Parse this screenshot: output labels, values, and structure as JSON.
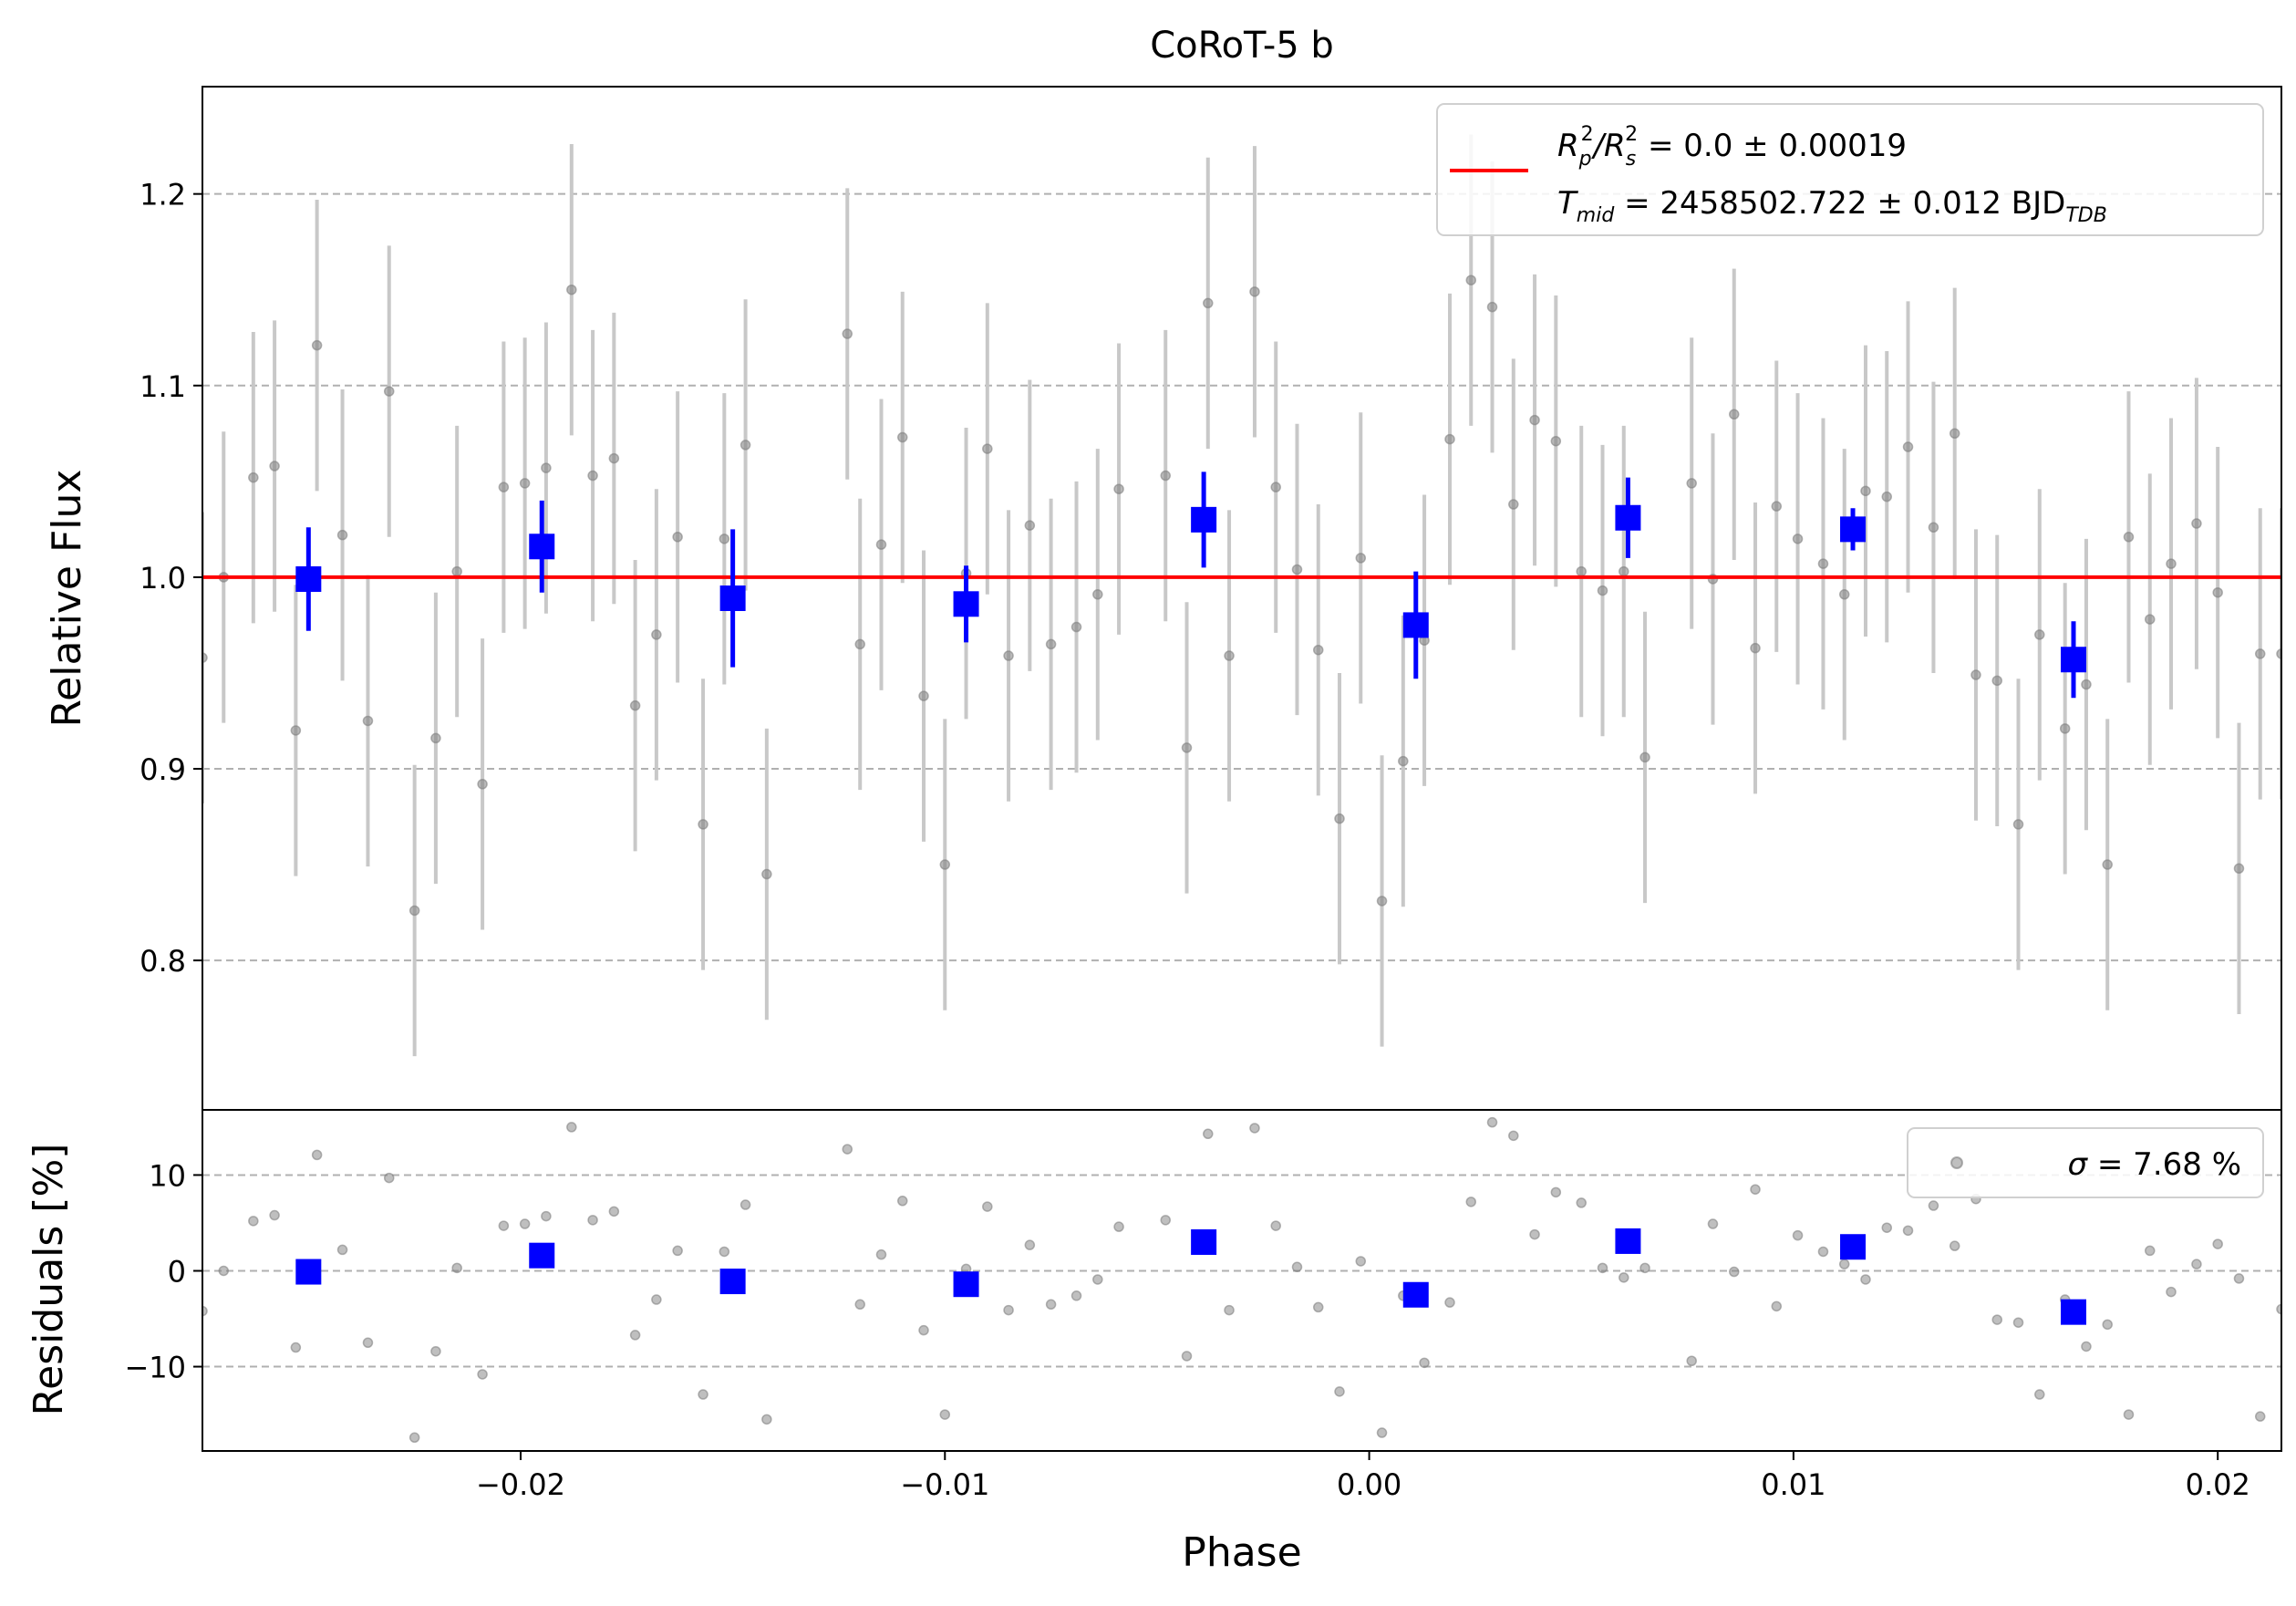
{
  "chart_data": [
    {
      "type": "scatter",
      "panel": "light-curve",
      "title": "CoRoT-5 b",
      "ylabel": "Relative Flux",
      "xlim": [
        -0.0275,
        0.0215
      ],
      "ylim": [
        0.722,
        1.256
      ],
      "yticks": [
        "0.8",
        "0.9",
        "1.0",
        "1.1",
        "1.2"
      ],
      "ytick_values": [
        0.8,
        0.9,
        1.0,
        1.1,
        1.2
      ],
      "grid": "horizontal dashed",
      "legend": {
        "placement": "top-right",
        "entries": [
          {
            "label": "R_p^2/R_s^2 = 0.0 ± 0.00019",
            "pre": "R",
            "sub1": "p",
            "sup1": "2",
            "slash": "/R",
            "sub2": "s",
            "sup2": "2",
            "post": " = 0.0 ± 0.00019"
          },
          {
            "label": "T_mid = 2458502.722 ± 0.012 BJD_TDB",
            "pre": "T",
            "sub1": "mid",
            "post": " = 2458502.722 ± 0.012 BJD",
            "sub2": "TDB"
          }
        ]
      },
      "model": {
        "y": 1.0,
        "color": "#ff0000"
      },
      "raw_points": {
        "color": "#808080",
        "errorbar_color": "#c8c8c8",
        "x": [
          -0.0275,
          -0.027,
          -0.0263,
          -0.0258,
          -0.0253,
          -0.0248,
          -0.0242,
          -0.0236,
          -0.0231,
          -0.0225,
          -0.022,
          -0.0215,
          -0.0209,
          -0.0204,
          -0.0199,
          -0.0194,
          -0.0188,
          -0.0183,
          -0.0178,
          -0.0173,
          -0.0168,
          -0.0163,
          -0.0157,
          -0.0152,
          -0.0147,
          -0.0142,
          -0.0123,
          -0.012,
          -0.0115,
          -0.011,
          -0.0105,
          -0.01,
          -0.0095,
          -0.009,
          -0.0085,
          -0.008,
          -0.0075,
          -0.0069,
          -0.0064,
          -0.0059,
          -0.0048,
          -0.0043,
          -0.0038,
          -0.0033,
          -0.0027,
          -0.0022,
          -0.0017,
          -0.0012,
          -0.0007,
          -0.0002,
          0.0003,
          0.0008,
          0.0013,
          0.0019,
          0.0024,
          0.0029,
          0.0034,
          0.0039,
          0.0044,
          0.005,
          0.0055,
          0.006,
          0.0065,
          0.0076,
          0.0081,
          0.0086,
          0.0091,
          0.0096,
          0.0101,
          0.0107,
          0.0112,
          0.0117,
          0.0122,
          0.0127,
          0.0133,
          0.0138,
          0.0143,
          0.0148,
          0.0153,
          0.0158,
          0.0164,
          0.0169,
          0.0174,
          0.0179,
          0.0184,
          0.0189,
          0.0195,
          0.02,
          0.0205,
          0.021,
          0.0215
        ],
        "y": [
          0.958,
          1.0,
          1.052,
          1.058,
          0.92,
          1.121,
          1.022,
          0.925,
          1.097,
          0.826,
          0.916,
          1.003,
          0.892,
          1.047,
          1.049,
          1.057,
          1.15,
          1.053,
          1.062,
          0.933,
          0.97,
          1.021,
          0.871,
          1.02,
          1.069,
          0.845,
          1.127,
          0.965,
          1.017,
          1.073,
          0.938,
          0.85,
          1.002,
          1.067,
          0.959,
          1.027,
          0.965,
          0.974,
          0.991,
          1.046,
          1.053,
          0.911,
          1.143,
          0.959,
          1.149,
          1.047,
          1.004,
          0.962,
          0.874,
          1.01,
          0.831,
          0.904,
          0.967,
          1.072,
          1.155,
          1.141,
          1.038,
          1.082,
          1.071,
          1.003,
          0.993,
          1.003,
          0.906,
          1.049,
          0.999,
          1.085,
          0.963,
          1.037,
          1.02,
          1.007,
          0.991,
          1.045,
          1.042,
          1.068,
          1.026,
          1.075,
          0.949,
          0.946,
          0.871,
          0.97,
          0.921,
          0.944,
          0.85,
          1.021,
          0.978,
          1.007,
          1.028,
          0.992,
          0.848,
          0.96,
          0.96
        ],
        "yerr": [
          0.076,
          0.076,
          0.076,
          0.076,
          0.076,
          0.076,
          0.076,
          0.076,
          0.076,
          0.076,
          0.076,
          0.076,
          0.076,
          0.076,
          0.076,
          0.076,
          0.076,
          0.076,
          0.076,
          0.076,
          0.076,
          0.076,
          0.076,
          0.076,
          0.076,
          0.076,
          0.076,
          0.076,
          0.076,
          0.076,
          0.076,
          0.076,
          0.076,
          0.076,
          0.076,
          0.076,
          0.076,
          0.076,
          0.076,
          0.076,
          0.076,
          0.076,
          0.076,
          0.076,
          0.076,
          0.076,
          0.076,
          0.076,
          0.076,
          0.076,
          0.076,
          0.076,
          0.076,
          0.076,
          0.076,
          0.076,
          0.076,
          0.076,
          0.076,
          0.076,
          0.076,
          0.076,
          0.076,
          0.076,
          0.076,
          0.076,
          0.076,
          0.076,
          0.076,
          0.076,
          0.076,
          0.076,
          0.076,
          0.076,
          0.076,
          0.076,
          0.076,
          0.076,
          0.076,
          0.076,
          0.076,
          0.076,
          0.076,
          0.076,
          0.076,
          0.076,
          0.076,
          0.076,
          0.076,
          0.076,
          0.076
        ]
      },
      "binned_points": {
        "color": "#0000ff",
        "x": [
          -0.025,
          -0.0195,
          -0.015,
          -0.0095,
          -0.0039,
          0.0011,
          0.0061,
          0.0114,
          0.0166
        ],
        "y": [
          0.999,
          1.016,
          0.989,
          0.986,
          1.03,
          0.975,
          1.031,
          1.025,
          0.957
        ],
        "yerr": [
          0.027,
          0.024,
          0.036,
          0.02,
          0.025,
          0.028,
          0.021,
          0.011,
          0.02
        ]
      }
    },
    {
      "type": "scatter",
      "panel": "residuals",
      "xlabel": "Phase",
      "ylabel": "Residuals [%]",
      "xlim": [
        -0.0275,
        0.0215
      ],
      "ylim": [
        -18.8,
        16.8
      ],
      "yticks": [
        "−10",
        "0",
        "10"
      ],
      "ytick_values": [
        -10,
        0,
        10
      ],
      "xticks": [
        "−0.02",
        "−0.01",
        "0.00",
        "0.01",
        "0.02"
      ],
      "xtick_values": [
        -0.02,
        -0.01,
        0.0,
        0.01,
        0.02
      ],
      "grid": "horizontal dashed",
      "legend": {
        "placement": "top-right",
        "pre": "σ",
        "post": " = 7.68 %",
        "label": "σ = 7.68 %"
      },
      "raw_points": {
        "color": "#808080",
        "x": [
          -0.0275,
          -0.027,
          -0.0263,
          -0.0258,
          -0.0253,
          -0.0248,
          -0.0242,
          -0.0236,
          -0.0231,
          -0.0225,
          -0.022,
          -0.0215,
          -0.0209,
          -0.0204,
          -0.0199,
          -0.0194,
          -0.0188,
          -0.0183,
          -0.0178,
          -0.0173,
          -0.0168,
          -0.0163,
          -0.0157,
          -0.0152,
          -0.0147,
          -0.0142,
          -0.0123,
          -0.012,
          -0.0115,
          -0.011,
          -0.0105,
          -0.01,
          -0.0095,
          -0.009,
          -0.0085,
          -0.008,
          -0.0075,
          -0.0069,
          -0.0064,
          -0.0059,
          -0.0048,
          -0.0043,
          -0.0038,
          -0.0033,
          -0.0027,
          -0.0022,
          -0.0017,
          -0.0012,
          -0.0007,
          -0.0002,
          0.0003,
          0.0008,
          0.0013,
          0.0019,
          0.0024,
          0.0029,
          0.0034,
          0.0039,
          0.0044,
          0.005,
          0.0055,
          0.006,
          0.0065,
          0.0076,
          0.0081,
          0.0086,
          0.0091,
          0.0096,
          0.0101,
          0.0107,
          0.0112,
          0.0117,
          0.0122,
          0.0127,
          0.0133,
          0.0138,
          0.0143,
          0.0148,
          0.0153,
          0.0158,
          0.0164,
          0.0169,
          0.0174,
          0.0179,
          0.0184,
          0.0189,
          0.0195,
          0.02,
          0.0205,
          0.021,
          0.0215
        ],
        "y": [
          -4.2,
          0.0,
          5.2,
          5.8,
          -8.0,
          12.1,
          2.2,
          -7.5,
          9.7,
          -17.4,
          -8.4,
          0.3,
          -10.8,
          4.7,
          4.9,
          5.7,
          15.0,
          5.3,
          6.2,
          -6.7,
          -3.0,
          2.1,
          -12.9,
          2.0,
          6.9,
          -15.5,
          12.7,
          -3.5,
          1.7,
          7.3,
          -6.2,
          -15.0,
          0.2,
          6.7,
          -4.1,
          2.7,
          -3.5,
          -2.6,
          -0.9,
          4.6,
          5.3,
          -8.9,
          14.3,
          -4.1,
          14.9,
          4.7,
          0.4,
          -3.8,
          -12.6,
          1.0,
          -16.9,
          -2.6,
          -9.6,
          -3.3,
          7.2,
          15.5,
          14.1,
          3.8,
          8.2,
          7.1,
          0.3,
          -0.7,
          0.3,
          -9.4,
          4.9,
          -0.1,
          8.5,
          -3.7,
          3.7,
          2.0,
          0.7,
          -0.9,
          4.5,
          4.2,
          6.8,
          2.6,
          7.5,
          -5.1,
          -5.4,
          -12.9,
          -3.0,
          -7.9,
          -5.6,
          -15.0,
          2.1,
          -2.2,
          0.7,
          2.8,
          -0.8,
          -15.2,
          -4.0
        ]
      },
      "binned_points": {
        "color": "#0000ff",
        "x": [
          -0.025,
          -0.0195,
          -0.015,
          -0.0095,
          -0.0039,
          0.0011,
          0.0061,
          0.0114,
          0.0166
        ],
        "y": [
          -0.1,
          1.6,
          -1.1,
          -1.4,
          3.0,
          -2.5,
          3.1,
          2.5,
          -4.3
        ]
      }
    }
  ]
}
